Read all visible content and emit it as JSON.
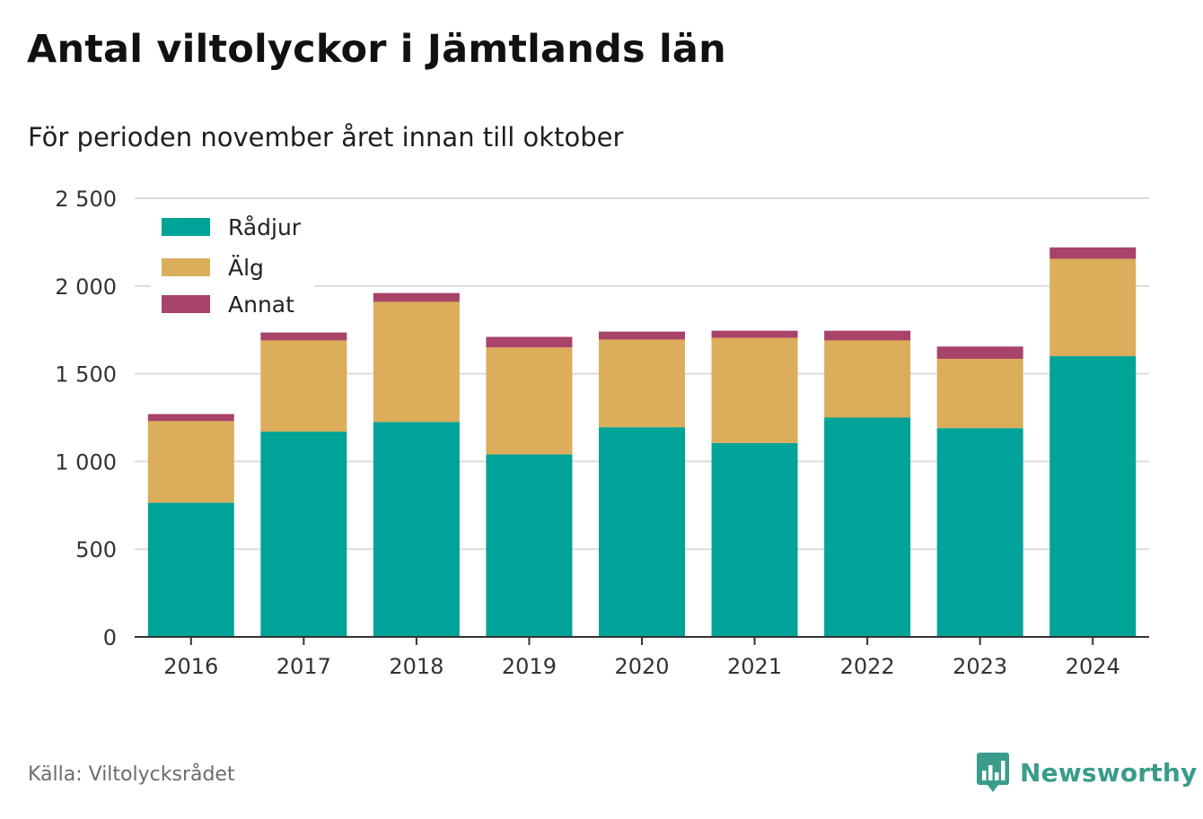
{
  "header": {
    "title": "Antal viltolyckor i Jämtlands län",
    "subtitle": "För perioden november året innan till oktober"
  },
  "footer": {
    "source": "Källa: Viltolycksrådet",
    "brand": "Newsworthy",
    "brand_icon": "bar-chart-speech-bubble-icon",
    "brand_color": "#3a9c8a"
  },
  "chart_data": {
    "type": "bar",
    "stacked": true,
    "categories": [
      "2016",
      "2017",
      "2018",
      "2019",
      "2020",
      "2021",
      "2022",
      "2023",
      "2024"
    ],
    "series": [
      {
        "name": "Rådjur",
        "color": "#00a398",
        "values": [
          765,
          1170,
          1225,
          1040,
          1195,
          1105,
          1250,
          1190,
          1600
        ]
      },
      {
        "name": "Älg",
        "color": "#dcad5a",
        "values": [
          465,
          520,
          685,
          610,
          500,
          600,
          440,
          395,
          555
        ]
      },
      {
        "name": "Annat",
        "color": "#a8436a",
        "values": [
          40,
          45,
          50,
          60,
          45,
          40,
          55,
          70,
          65
        ]
      }
    ],
    "yticks": [
      0,
      500,
      1000,
      1500,
      2000,
      2500
    ],
    "ytick_labels": [
      "0",
      "500",
      "1 000",
      "1 500",
      "2 000",
      "2 500"
    ],
    "ylim": [
      0,
      2500
    ],
    "grid": true,
    "legend_position": "top-left",
    "xlabel": "",
    "ylabel": ""
  }
}
